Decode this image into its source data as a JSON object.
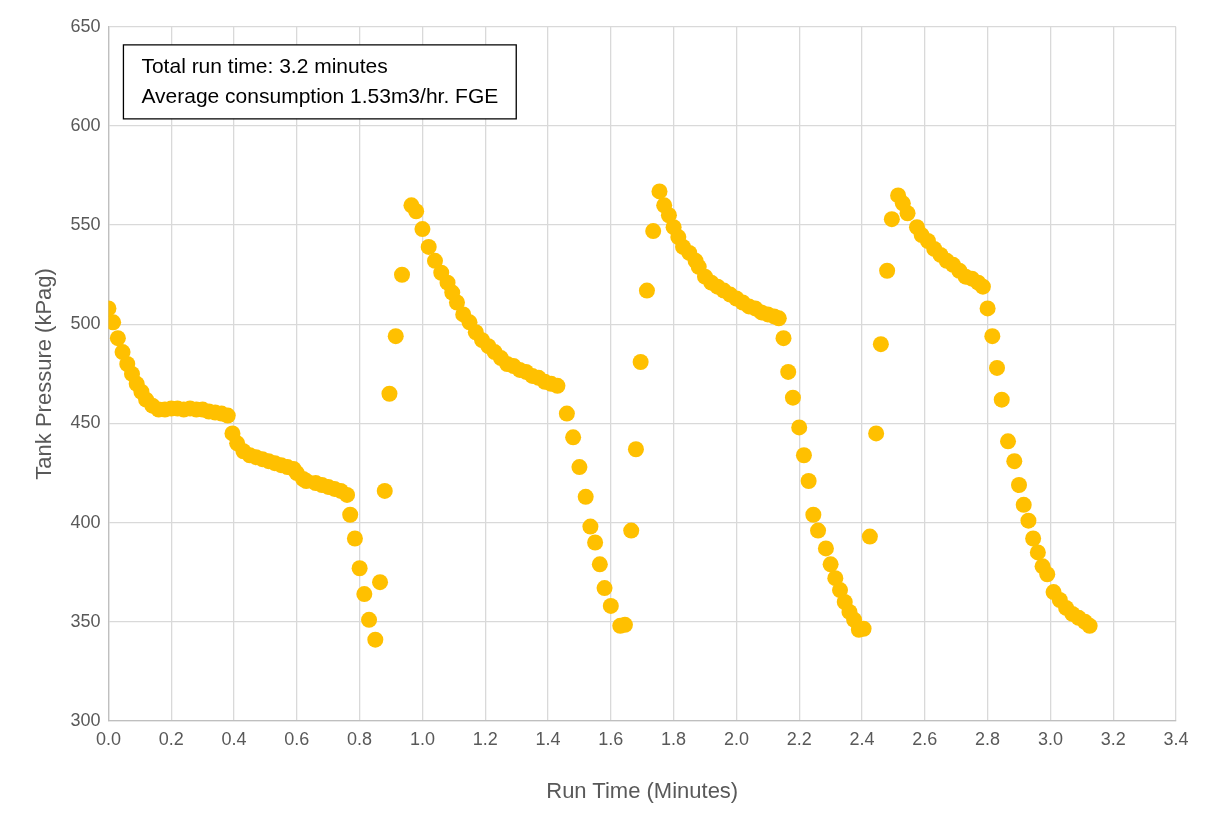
{
  "chart_data": {
    "type": "scatter",
    "xlabel": "Run Time (Minutes)",
    "ylabel": "Tank Pressure (kPag)",
    "annotations": [
      "Total run time: 3.2 minutes",
      "Average consumption 1.53m3/hr. FGE"
    ],
    "xlim": [
      0,
      3.4
    ],
    "xticks": [
      {
        "value": 0,
        "label": "0.0"
      },
      {
        "value": 0.2,
        "label": "0.2"
      },
      {
        "value": 0.4,
        "label": "0.4"
      },
      {
        "value": 0.6,
        "label": "0.6"
      },
      {
        "value": 0.8,
        "label": "0.8"
      },
      {
        "value": 1,
        "label": "1.0"
      },
      {
        "value": 1.2,
        "label": "1.2"
      },
      {
        "value": 1.4,
        "label": "1.4"
      },
      {
        "value": 1.6,
        "label": "1.6"
      },
      {
        "value": 1.8,
        "label": "1.8"
      },
      {
        "value": 2,
        "label": "2.0"
      },
      {
        "value": 2.2,
        "label": "2.2"
      },
      {
        "value": 2.4,
        "label": "2.4"
      },
      {
        "value": 2.6,
        "label": "2.6"
      },
      {
        "value": 2.8,
        "label": "2.8"
      },
      {
        "value": 3,
        "label": "3.0"
      },
      {
        "value": 3.2,
        "label": "3.2"
      },
      {
        "value": 3.4,
        "label": "3.4"
      }
    ],
    "ylim": [
      300,
      650
    ],
    "yticks": [
      300,
      350,
      400,
      450,
      500,
      550,
      600,
      650
    ],
    "grid": true,
    "legend": false,
    "marker": "circle",
    "series": [
      {
        "color": "#ffc000",
        "x": [
          0,
          0.015,
          0.03,
          0.045,
          0.06,
          0.075,
          0.09,
          0.105,
          0.12,
          0.14,
          0.16,
          0.18,
          0.2,
          0.22,
          0.24,
          0.26,
          0.28,
          0.3,
          0.32,
          0.34,
          0.36,
          0.38,
          0.395,
          0.41,
          0.43,
          0.45,
          0.47,
          0.49,
          0.51,
          0.53,
          0.55,
          0.57,
          0.59,
          0.6,
          0.62,
          0.63,
          0.66,
          0.68,
          0.7,
          0.72,
          0.74,
          0.76,
          0.77,
          0.785,
          0.8,
          0.815,
          0.83,
          0.85,
          0.865,
          0.88,
          0.895,
          0.915,
          0.935,
          0.965,
          0.98,
          1,
          1.02,
          1.04,
          1.06,
          1.08,
          1.095,
          1.11,
          1.13,
          1.15,
          1.17,
          1.19,
          1.21,
          1.23,
          1.25,
          1.27,
          1.29,
          1.31,
          1.33,
          1.35,
          1.37,
          1.39,
          1.41,
          1.43,
          1.46,
          1.48,
          1.5,
          1.52,
          1.535,
          1.55,
          1.565,
          1.58,
          1.6,
          1.63,
          1.645,
          1.665,
          1.68,
          1.695,
          1.715,
          1.735,
          1.755,
          1.77,
          1.785,
          1.8,
          1.815,
          1.83,
          1.85,
          1.87,
          1.88,
          1.9,
          1.92,
          1.94,
          1.96,
          1.98,
          2,
          2.02,
          2.04,
          2.06,
          2.08,
          2.1,
          2.12,
          2.135,
          2.15,
          2.165,
          2.18,
          2.2,
          2.215,
          2.23,
          2.245,
          2.26,
          2.285,
          2.3,
          2.315,
          2.33,
          2.345,
          2.36,
          2.375,
          2.39,
          2.405,
          2.425,
          2.445,
          2.46,
          2.48,
          2.495,
          2.515,
          2.53,
          2.545,
          2.575,
          2.59,
          2.61,
          2.63,
          2.65,
          2.67,
          2.69,
          2.71,
          2.73,
          2.75,
          2.77,
          2.785,
          2.8,
          2.815,
          2.83,
          2.845,
          2.865,
          2.885,
          2.9,
          2.915,
          2.93,
          2.945,
          2.96,
          2.975,
          2.99,
          3.01,
          3.03,
          3.05,
          3.07,
          3.09,
          3.11,
          3.125
        ],
        "values": [
          508,
          501,
          493,
          486,
          480,
          475,
          470,
          466,
          462,
          459,
          457,
          457,
          457.5,
          457.5,
          457,
          457.5,
          457,
          457,
          456,
          455.5,
          455,
          454,
          445,
          440,
          436,
          434,
          433,
          432,
          431,
          430,
          429,
          428,
          427,
          425,
          422,
          421,
          420,
          419,
          418,
          417,
          416,
          414,
          404,
          392,
          377,
          364,
          351,
          341,
          370,
          416,
          465,
          494,
          525,
          560,
          557,
          548,
          539,
          532,
          526,
          521,
          516,
          511,
          505,
          501,
          496,
          492,
          489,
          486,
          483,
          480,
          479,
          477,
          476,
          474,
          473,
          471,
          470,
          469,
          455,
          443,
          428,
          413,
          398,
          390,
          379,
          367,
          358,
          348,
          348.5,
          396,
          437,
          481,
          517,
          547,
          567,
          560,
          555,
          549,
          544,
          539,
          536,
          532,
          529,
          524,
          521,
          519,
          517,
          515,
          513,
          511,
          509,
          508,
          506,
          505,
          504,
          503,
          493,
          476,
          463,
          448,
          434,
          421,
          404,
          396,
          387,
          379,
          372,
          366,
          360,
          355,
          351,
          346,
          346.5,
          393,
          445,
          490,
          527,
          553,
          565,
          561,
          556,
          549,
          545,
          542,
          538,
          535,
          532,
          530,
          527,
          524,
          523,
          521,
          519,
          508,
          494,
          478,
          462,
          441,
          431,
          419,
          409,
          401,
          392,
          385,
          378,
          374,
          365,
          361,
          357,
          354,
          352,
          350,
          348
        ]
      }
    ]
  }
}
